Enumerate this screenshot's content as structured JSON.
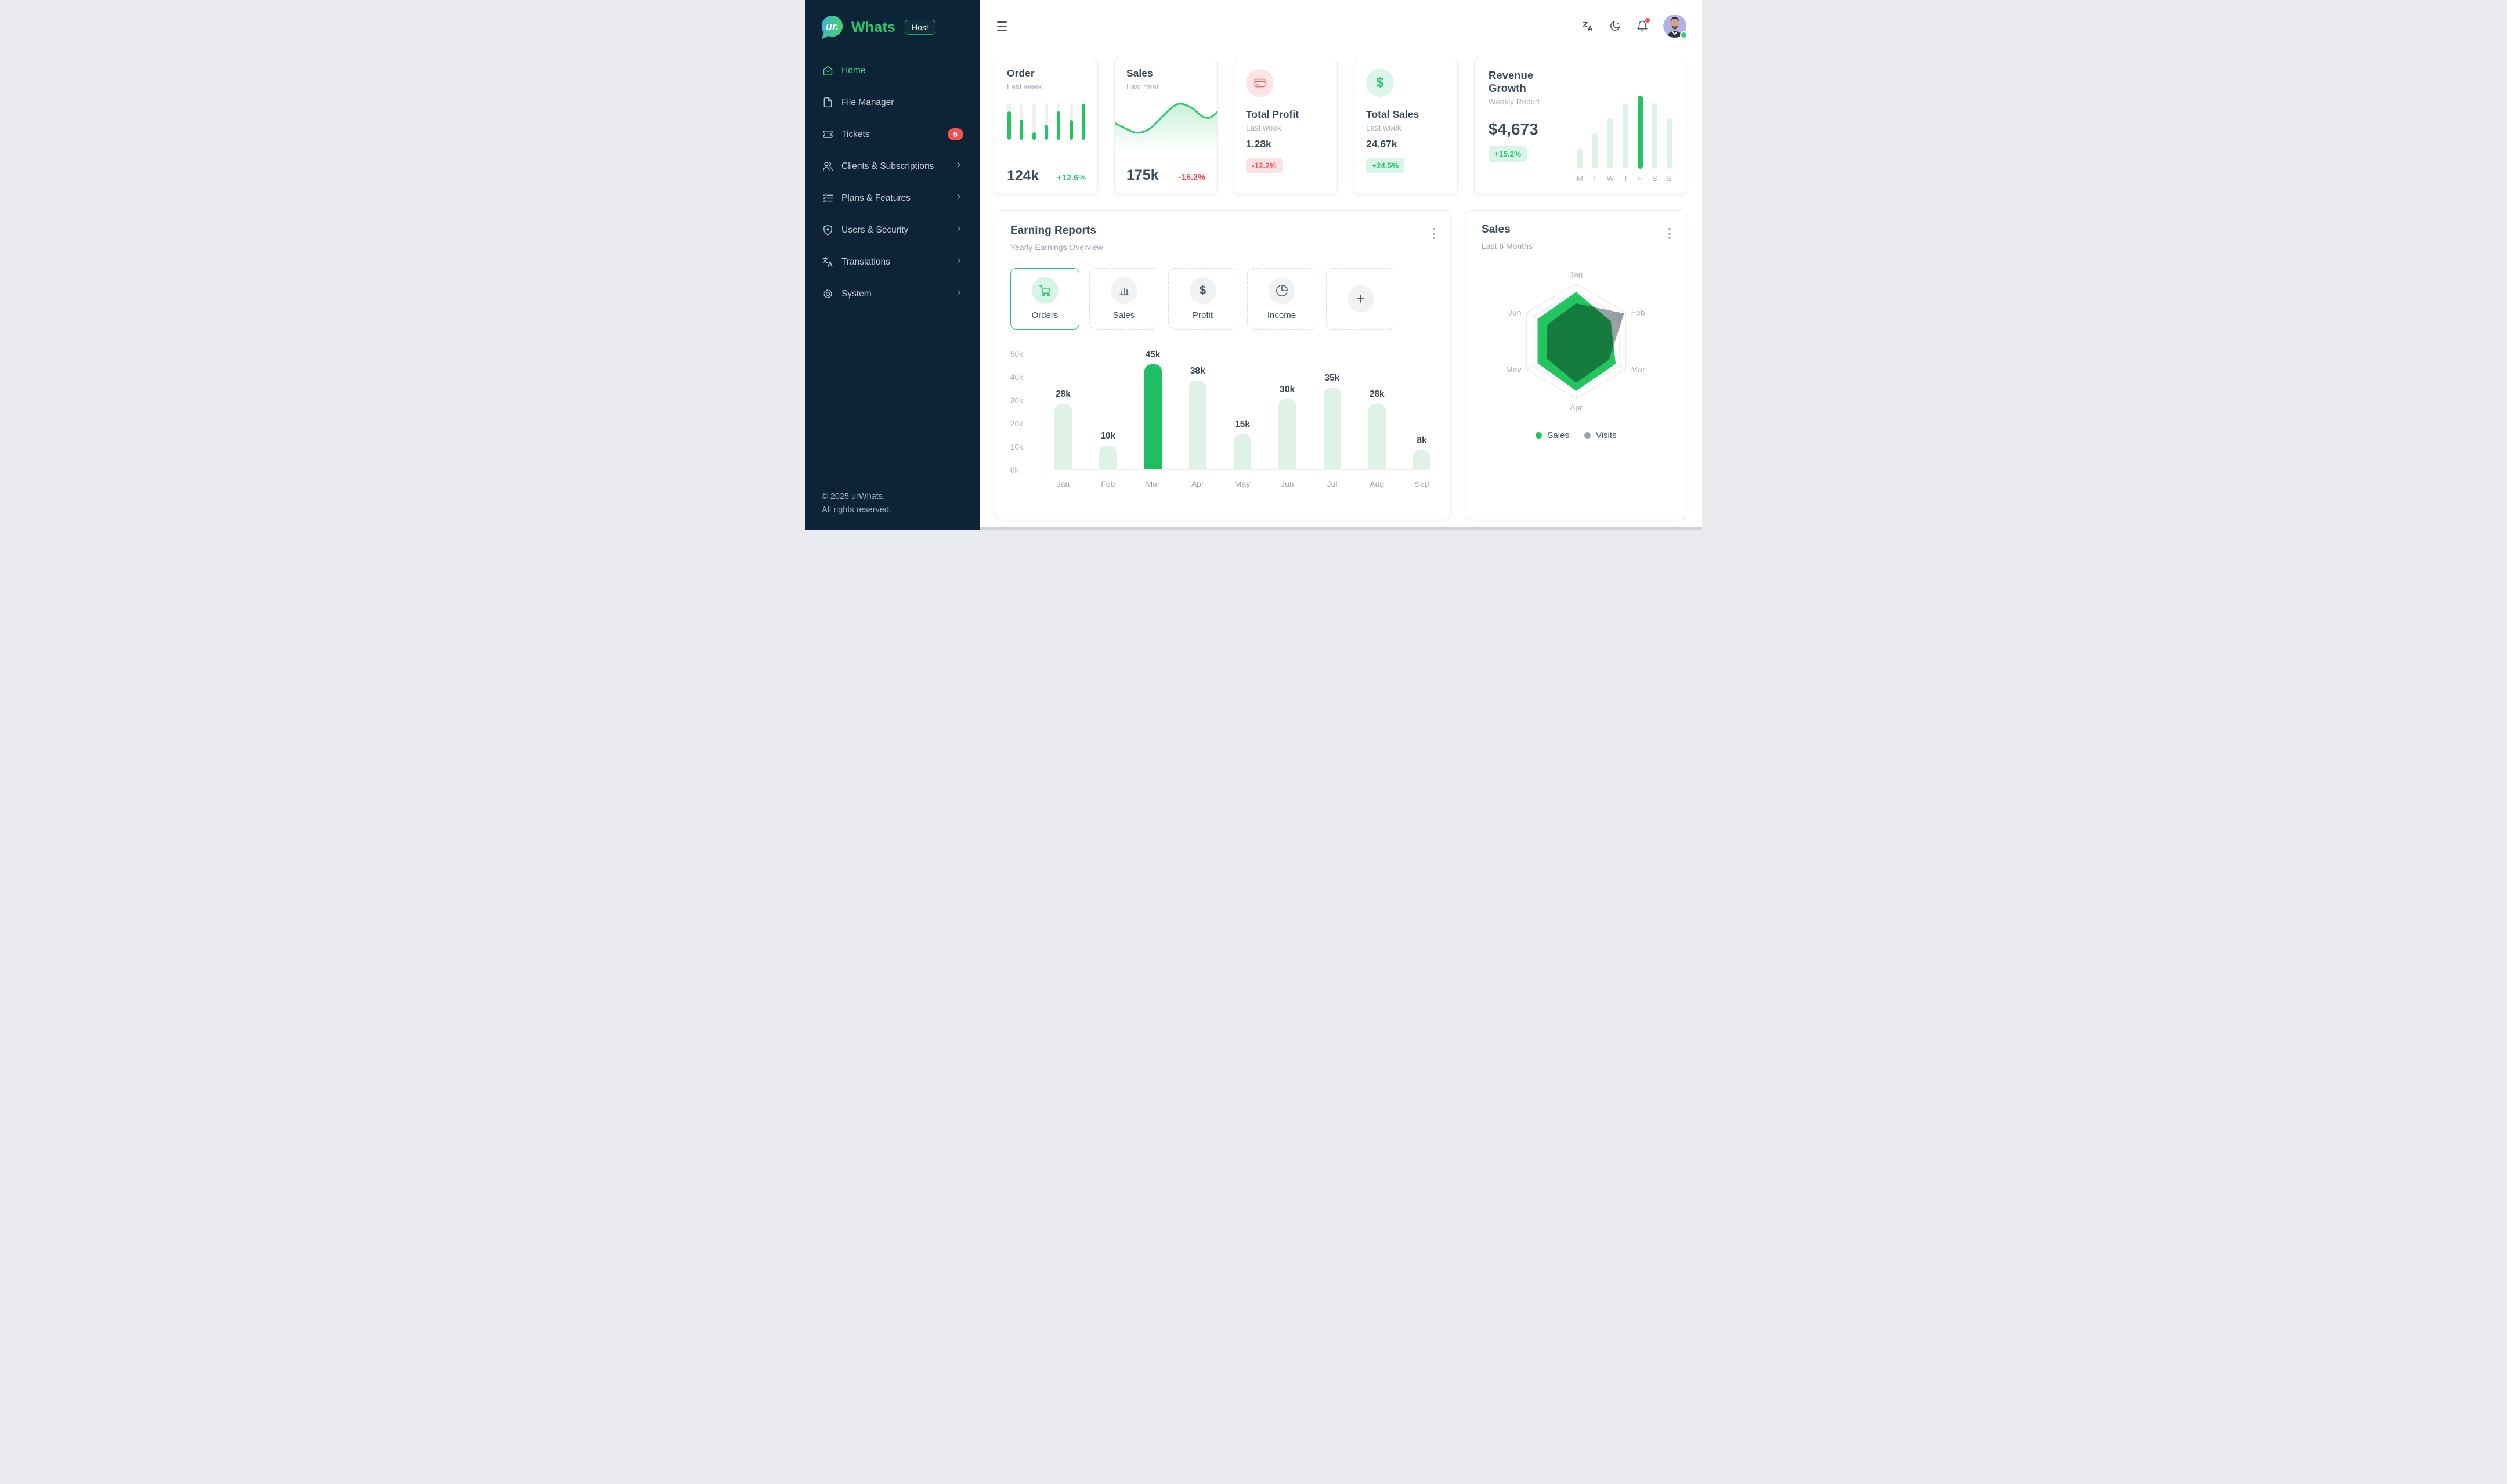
{
  "colors": {
    "sidebar_bg": "#0d2336",
    "primary_green": "#22c55e",
    "success": "#2cc474",
    "danger": "#f05758",
    "heading": "#3e4c59",
    "muted": "#a8b1ba",
    "light_green_bg": "#daf4e7",
    "light_red_bg": "#fbe2e3"
  },
  "brand": {
    "logo_text": "ur.",
    "name": "Whats",
    "badge": "Host"
  },
  "sidebar": {
    "items": [
      {
        "label": "Home",
        "active": true
      },
      {
        "label": "File Manager"
      },
      {
        "label": "Tickets",
        "badge": "5"
      },
      {
        "label": "Clients & Subscriptions",
        "chevron": true
      },
      {
        "label": "Plans & Features",
        "chevron": true
      },
      {
        "label": "Users & Security",
        "chevron": true
      },
      {
        "label": "Translations",
        "chevron": true
      },
      {
        "label": "System",
        "chevron": true
      }
    ],
    "footer": {
      "line1": "© 2025 urWhats.",
      "line2": "All rights reserved."
    }
  },
  "stat_cards": {
    "order": {
      "title": "Order",
      "subtitle": "Last week",
      "value": "124k",
      "delta": "+12.6%"
    },
    "sales": {
      "title": "Sales",
      "subtitle": "Last Year",
      "value": "175k",
      "delta": "-16.2%"
    },
    "total_profit": {
      "title": "Total Profit",
      "subtitle": "Last week",
      "value": "1.28k",
      "delta": "-12.2%"
    },
    "total_sales": {
      "title": "Total Sales",
      "subtitle": "Last week",
      "value": "24.67k",
      "delta": "+24.5%"
    },
    "revenue_growth": {
      "title": "Revenue Growth",
      "subtitle": "Weekly Report",
      "value": "$4,673",
      "delta": "+15.2%"
    }
  },
  "earning_reports": {
    "title": "Earning Reports",
    "subtitle": "Yearly Earnings Overview",
    "tabs": [
      {
        "label": "Orders",
        "active": true
      },
      {
        "label": "Sales"
      },
      {
        "label": "Profit"
      },
      {
        "label": "Income"
      },
      {
        "label": "+",
        "add": true
      }
    ]
  },
  "sales_card": {
    "title": "Sales",
    "subtitle": "Last 6 Months"
  },
  "chart_data": [
    {
      "id": "order_spark",
      "type": "bar",
      "title": "Order last week mini bars",
      "values_pct": [
        76,
        54,
        21,
        41,
        76,
        53,
        97
      ],
      "bar_color": "#22c55e",
      "track_color": "#edeff1"
    },
    {
      "id": "sales_spark",
      "type": "area",
      "title": "Sales last year sparkline",
      "points": [
        [
          0,
          50
        ],
        [
          10,
          61
        ],
        [
          22,
          70
        ],
        [
          34,
          62
        ],
        [
          46,
          38
        ],
        [
          58,
          15
        ],
        [
          66,
          11
        ],
        [
          76,
          20
        ],
        [
          86,
          37
        ],
        [
          93,
          39
        ],
        [
          100,
          28
        ]
      ],
      "line_color": "#2dc76d",
      "fill_from": "rgba(45,199,109,0.25)",
      "fill_to": "rgba(45,199,109,0)"
    },
    {
      "id": "revenue_week",
      "type": "bar",
      "title": "Revenue Growth weekly bars",
      "categories": [
        "M",
        "T",
        "W",
        "T",
        "F",
        "S",
        "S"
      ],
      "values_pct": [
        28,
        49,
        70,
        90,
        100,
        90,
        70
      ],
      "highlight_index": 4,
      "bar_color": "#def2e6",
      "highlight_color": "#24c368"
    },
    {
      "id": "earnings",
      "type": "bar",
      "title": "Earning Reports",
      "subtitle": "Yearly Earnings Overview",
      "categories": [
        "Jan",
        "Feb",
        "Mar",
        "Apr",
        "May",
        "Jun",
        "Jul",
        "Aug",
        "Sep"
      ],
      "values": [
        28,
        10,
        45,
        38,
        15,
        30,
        35,
        28,
        8
      ],
      "unit": "k",
      "ylim": [
        0,
        50
      ],
      "yticks": [
        "0k",
        "10k",
        "20k",
        "30k",
        "40k",
        "50k"
      ],
      "highlight_index": 2,
      "bar_color": "#def2e6",
      "highlight_color": "#1fbe63",
      "grid": false,
      "legend_position": "none"
    },
    {
      "id": "radar",
      "type": "radar",
      "title": "Sales",
      "subtitle": "Last 6 Months",
      "categories": [
        "Jan",
        "Feb",
        "Mar",
        "Apr",
        "May",
        "Jun"
      ],
      "rings_pct": [
        100,
        87
      ],
      "series": [
        {
          "name": "Sales",
          "color": "#22c55e",
          "values_pct": [
            86,
            70,
            80,
            87,
            78,
            78
          ]
        },
        {
          "name": "Visits",
          "color": "#99a1a8",
          "values_pct": [
            66,
            97,
            66,
            73,
            60,
            58
          ]
        }
      ],
      "legend_position": "bottom"
    }
  ]
}
